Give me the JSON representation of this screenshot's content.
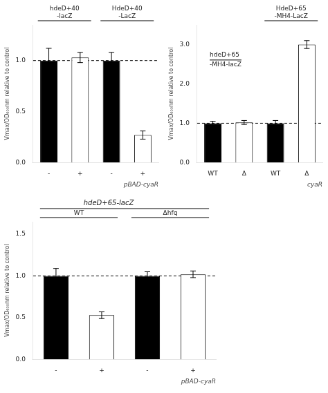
{
  "chart_data": [
    {
      "type": "bar",
      "categories": [
        "-",
        "+",
        "-",
        "+"
      ],
      "values": [
        1.0,
        1.03,
        1.0,
        0.27
      ],
      "errors": [
        0.12,
        0.05,
        0.08,
        0.04
      ],
      "colors": [
        "black",
        "white",
        "black",
        "white"
      ],
      "groups": [
        {
          "label": [
            "hdeD+40",
            "-lacZ"
          ],
          "size": 2
        },
        {
          "label": [
            "HdeD+40",
            "-LacZ"
          ],
          "size": 2
        }
      ],
      "xlabel": "pBAD-cyaR",
      "ylabel": "Vmax/OD₆₀₀nm relative to control",
      "ylim": [
        0,
        1.35
      ],
      "yticks": [
        {
          "value": 0.0,
          "label": "0.0"
        },
        {
          "value": 0.5,
          "label": "0.5"
        },
        {
          "value": 1.0,
          "label": "1.0"
        }
      ],
      "reference_line": 1.0,
      "grid": false
    },
    {
      "type": "bar",
      "categories": [
        "WT",
        "Δ",
        "WT",
        "Δ"
      ],
      "values": [
        1.0,
        1.02,
        1.0,
        3.0
      ],
      "errors": [
        0.05,
        0.05,
        0.07,
        0.1
      ],
      "colors": [
        "black",
        "white",
        "black",
        "white"
      ],
      "groups": [
        {
          "label": null,
          "size": 2
        },
        {
          "label": [
            "HdeD+65",
            "-MH4-LacZ"
          ],
          "size": 2
        }
      ],
      "annotations": [
        "hdeD+65",
        "-MH4-lacZ"
      ],
      "xlabel": "cyaR",
      "ylabel": "Vmax/OD₆₀₀nm relative to control",
      "ylim": [
        0,
        3.5
      ],
      "yticks": [
        {
          "value": 0.0,
          "label": "0.0"
        },
        {
          "value": 1.0,
          "label": "1.0"
        },
        {
          "value": 2.0,
          "label": "2.0"
        },
        {
          "value": 3.0,
          "label": "3.0"
        }
      ],
      "reference_line": 1.0,
      "grid": false
    },
    {
      "type": "bar",
      "title": "hdeD+65-lacZ",
      "categories": [
        "-",
        "+",
        "-",
        "+"
      ],
      "values": [
        1.0,
        0.53,
        1.0,
        1.02
      ],
      "errors": [
        0.09,
        0.04,
        0.05,
        0.04
      ],
      "colors": [
        "black",
        "white",
        "black",
        "white"
      ],
      "groups": [
        {
          "label": [
            "WT"
          ],
          "size": 2
        },
        {
          "label": [
            "Δhfq"
          ],
          "size": 2
        }
      ],
      "xlabel": "pBAD-cyaR",
      "ylabel": "Vmax/OD₆₀₀nm relative to control",
      "ylim": [
        0,
        1.65
      ],
      "yticks": [
        {
          "value": 0.0,
          "label": "0.0"
        },
        {
          "value": 0.5,
          "label": "0.5"
        },
        {
          "value": 1.0,
          "label": "1.0"
        },
        {
          "value": 1.5,
          "label": "1.5"
        }
      ],
      "reference_line": 1.0,
      "grid": false
    }
  ]
}
